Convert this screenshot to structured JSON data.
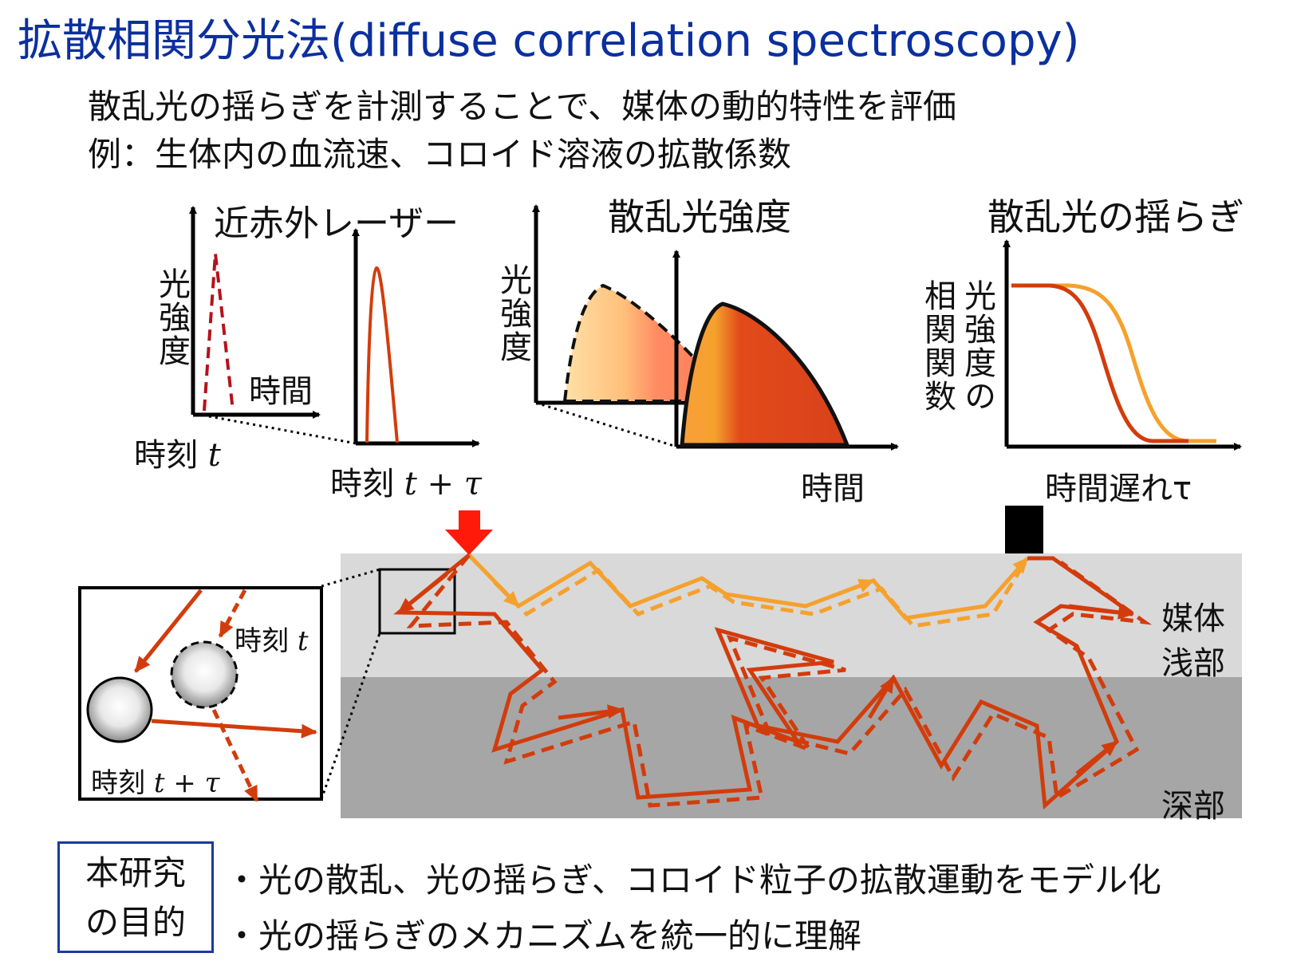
{
  "title": "拡散相関分光法(diffuse correlation spectroscopy)",
  "subtitle": {
    "line1": "散乱光の揺らぎを計測することで、媒体の動的特性を評価",
    "line2": "例：生体内の血流速、コロイド溶液の拡散係数"
  },
  "panel_laser": {
    "title": "近赤外レーザー",
    "ylabel": "光強度",
    "xlabel": "時間",
    "time_t_label": "時刻",
    "time_t_var": "t",
    "time_ttau_label": "時刻",
    "time_ttau_var": "t + τ"
  },
  "panel_scatter": {
    "title": "散乱光強度",
    "ylabel": "光強度",
    "xlabel": "時間"
  },
  "panel_fluct": {
    "title": "散乱光の揺らぎ",
    "ylabel_line1": "光強度の",
    "ylabel_line2": "相関関数",
    "xlabel": "時間遅れτ"
  },
  "medium": {
    "shallow_label": "媒体\n浅部",
    "shallow_line1": "媒体",
    "shallow_line2": "浅部",
    "deep_label": "深部",
    "colors": {
      "shallow": "#d9d9d9",
      "deep": "#a6a6a6",
      "path_shallow": "#f5a12d",
      "path_deep": "#d23c0c"
    }
  },
  "inset": {
    "time_t_label": "時刻",
    "time_t_var": "t",
    "time_ttau_label": "時刻",
    "time_ttau_var": "t + τ"
  },
  "purpose": {
    "box_line1": "本研究",
    "box_line2": "の目的",
    "bullets": [
      "・光の散乱、光の揺らぎ、コロイド粒子の拡散運動をモデル化",
      "・光の揺らぎのメカニズムを統一的に理解"
    ]
  }
}
